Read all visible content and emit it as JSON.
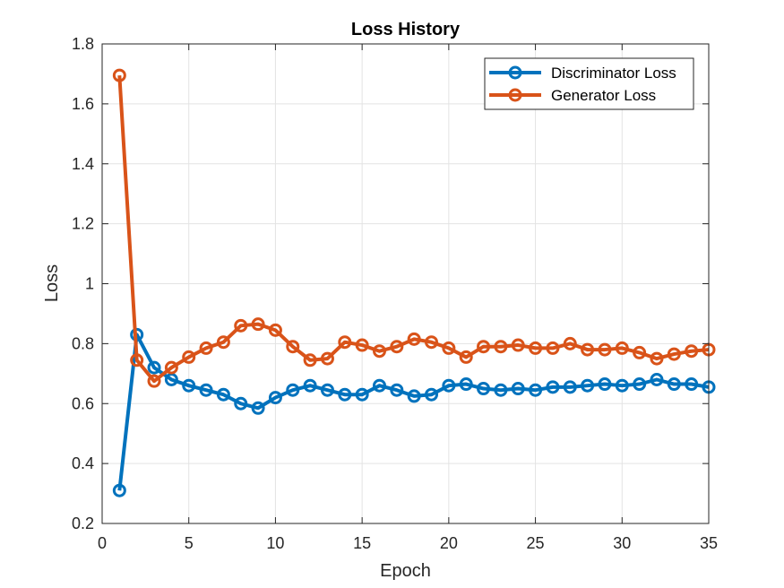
{
  "chart_data": {
    "type": "line",
    "title": "Loss History",
    "xlabel": "Epoch",
    "ylabel": "Loss",
    "xlim": [
      0,
      35
    ],
    "ylim": [
      0.2,
      1.8
    ],
    "xticks": [
      0,
      5,
      10,
      15,
      20,
      25,
      30,
      35
    ],
    "yticks": [
      0.2,
      0.4,
      0.6,
      0.8,
      1,
      1.2,
      1.4,
      1.6,
      1.8
    ],
    "grid": true,
    "legend_position": "top-right",
    "x": [
      1,
      2,
      3,
      4,
      5,
      6,
      7,
      8,
      9,
      10,
      11,
      12,
      13,
      14,
      15,
      16,
      17,
      18,
      19,
      20,
      21,
      22,
      23,
      24,
      25,
      26,
      27,
      28,
      29,
      30,
      31,
      32,
      33,
      34,
      35
    ],
    "series": [
      {
        "name": "Discriminator Loss",
        "color": "#0072bd",
        "values": [
          0.31,
          0.83,
          0.72,
          0.68,
          0.66,
          0.645,
          0.63,
          0.6,
          0.585,
          0.62,
          0.645,
          0.66,
          0.645,
          0.63,
          0.63,
          0.66,
          0.645,
          0.625,
          0.63,
          0.66,
          0.665,
          0.65,
          0.645,
          0.65,
          0.645,
          0.655,
          0.655,
          0.66,
          0.665,
          0.66,
          0.665,
          0.68,
          0.665,
          0.665,
          0.655
        ]
      },
      {
        "name": "Generator Loss",
        "color": "#d95319",
        "values": [
          1.695,
          0.745,
          0.675,
          0.72,
          0.755,
          0.785,
          0.805,
          0.86,
          0.865,
          0.845,
          0.79,
          0.745,
          0.75,
          0.805,
          0.795,
          0.775,
          0.79,
          0.815,
          0.805,
          0.785,
          0.755,
          0.79,
          0.79,
          0.795,
          0.785,
          0.785,
          0.8,
          0.78,
          0.78,
          0.785,
          0.77,
          0.75,
          0.765,
          0.775,
          0.78
        ]
      }
    ]
  }
}
